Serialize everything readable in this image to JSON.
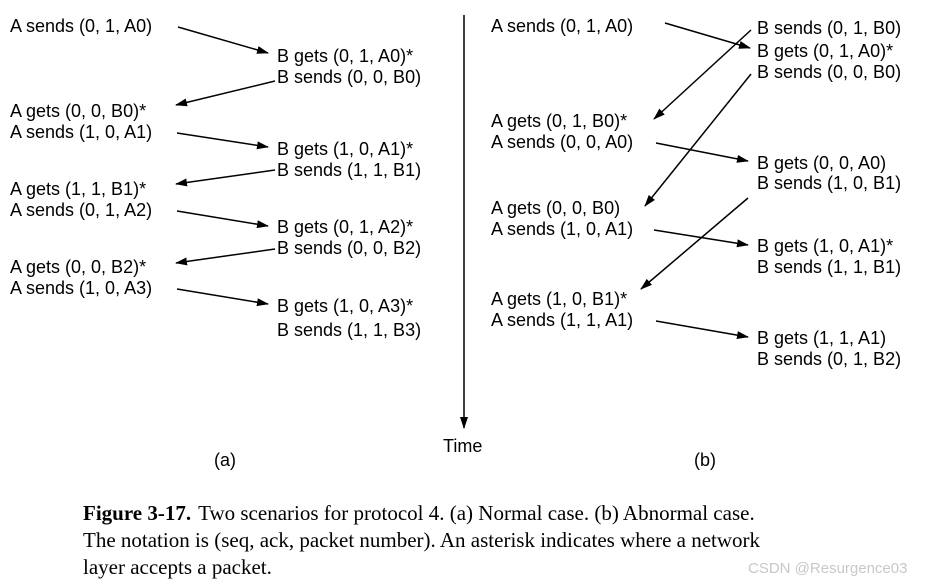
{
  "panel_a": {
    "label": "(a)",
    "lines": [
      "A sends (0, 1, A0)",
      "B gets (0, 1, A0)*",
      "B sends (0, 0, B0)",
      "A gets (0, 0, B0)*",
      "A sends (1, 0, A1)",
      "B gets (1, 0, A1)*",
      "B sends (1, 1, B1)",
      "A gets (1, 1, B1)*",
      "A sends (0, 1, A2)",
      "B gets (0, 1, A2)*",
      "B sends (0, 0, B2)",
      "A gets (0, 0, B2)*",
      "A sends (1, 0, A3)",
      "B gets (1, 0, A3)*",
      "B sends (1, 1, B3)"
    ]
  },
  "panel_b": {
    "label": "(b)",
    "lines": [
      "A sends (0, 1, A0)",
      "B sends (0, 1, B0)",
      "B gets (0, 1, A0)*",
      "B sends (0, 0, B0)",
      "A gets (0, 1, B0)*",
      "A sends (0, 0, A0)",
      "B gets (0, 0, A0)",
      "B sends (1, 0, B1)",
      "A gets (0, 0, B0)",
      "A sends (1, 0, A1)",
      "B gets (1, 0, A1)*",
      "B sends (1, 1, B1)",
      "A gets (1, 0, B1)*",
      "A sends (1, 1, A1)",
      "B gets (1, 1, A1)",
      "B sends (0, 1, B2)"
    ]
  },
  "time_axis": {
    "label": "Time"
  },
  "caption": {
    "figure_label": "Figure 3-17.",
    "line1": "Two scenarios for protocol 4.  (a) Normal case.  (b) Abnormal case.",
    "line2": "The notation is (seq, ack, packet number).  An asterisk indicates where a network",
    "line3": "layer accepts a packet."
  },
  "watermark": "CSDN @Resurgence03"
}
